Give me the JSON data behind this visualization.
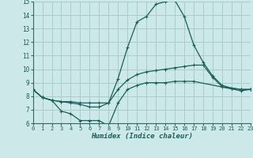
{
  "xlabel": "Humidex (Indice chaleur)",
  "background_color": "#cce8e8",
  "grid_color": "#aacccc",
  "line_color": "#1a5f5a",
  "x_min": 0,
  "x_max": 23,
  "y_min": 6,
  "y_max": 15,
  "series": [
    {
      "x": [
        0,
        1,
        2,
        3,
        4,
        5,
        6,
        7,
        8,
        9,
        10,
        11,
        12,
        13,
        14,
        15,
        16,
        17,
        18,
        19,
        20,
        21,
        22,
        23
      ],
      "y": [
        8.5,
        7.9,
        7.7,
        7.6,
        7.6,
        7.5,
        7.5,
        7.5,
        7.5,
        9.3,
        11.6,
        13.5,
        13.9,
        14.8,
        15.0,
        15.1,
        13.9,
        11.8,
        10.5,
        9.5,
        8.8,
        8.6,
        8.5,
        8.5
      ]
    },
    {
      "x": [
        0,
        1,
        2,
        3,
        4,
        5,
        6,
        7,
        8,
        9,
        10,
        11,
        12,
        13,
        14,
        15,
        16,
        17,
        18,
        19,
        20,
        21,
        22,
        23
      ],
      "y": [
        8.5,
        7.9,
        7.7,
        7.6,
        7.5,
        7.4,
        7.2,
        7.2,
        7.5,
        8.5,
        9.2,
        9.6,
        9.8,
        9.9,
        10.0,
        10.1,
        10.2,
        10.3,
        10.3,
        9.4,
        8.7,
        8.6,
        8.5,
        8.5
      ]
    },
    {
      "x": [
        0,
        1,
        2,
        3,
        4,
        5,
        6,
        7,
        8,
        9,
        10,
        11,
        12,
        13,
        14,
        15,
        16,
        17,
        22,
        23
      ],
      "y": [
        8.5,
        7.9,
        7.7,
        6.9,
        6.7,
        6.2,
        6.2,
        6.2,
        5.8,
        7.5,
        8.5,
        8.8,
        9.0,
        9.0,
        9.0,
        9.1,
        9.1,
        9.1,
        8.4,
        8.5
      ]
    }
  ]
}
